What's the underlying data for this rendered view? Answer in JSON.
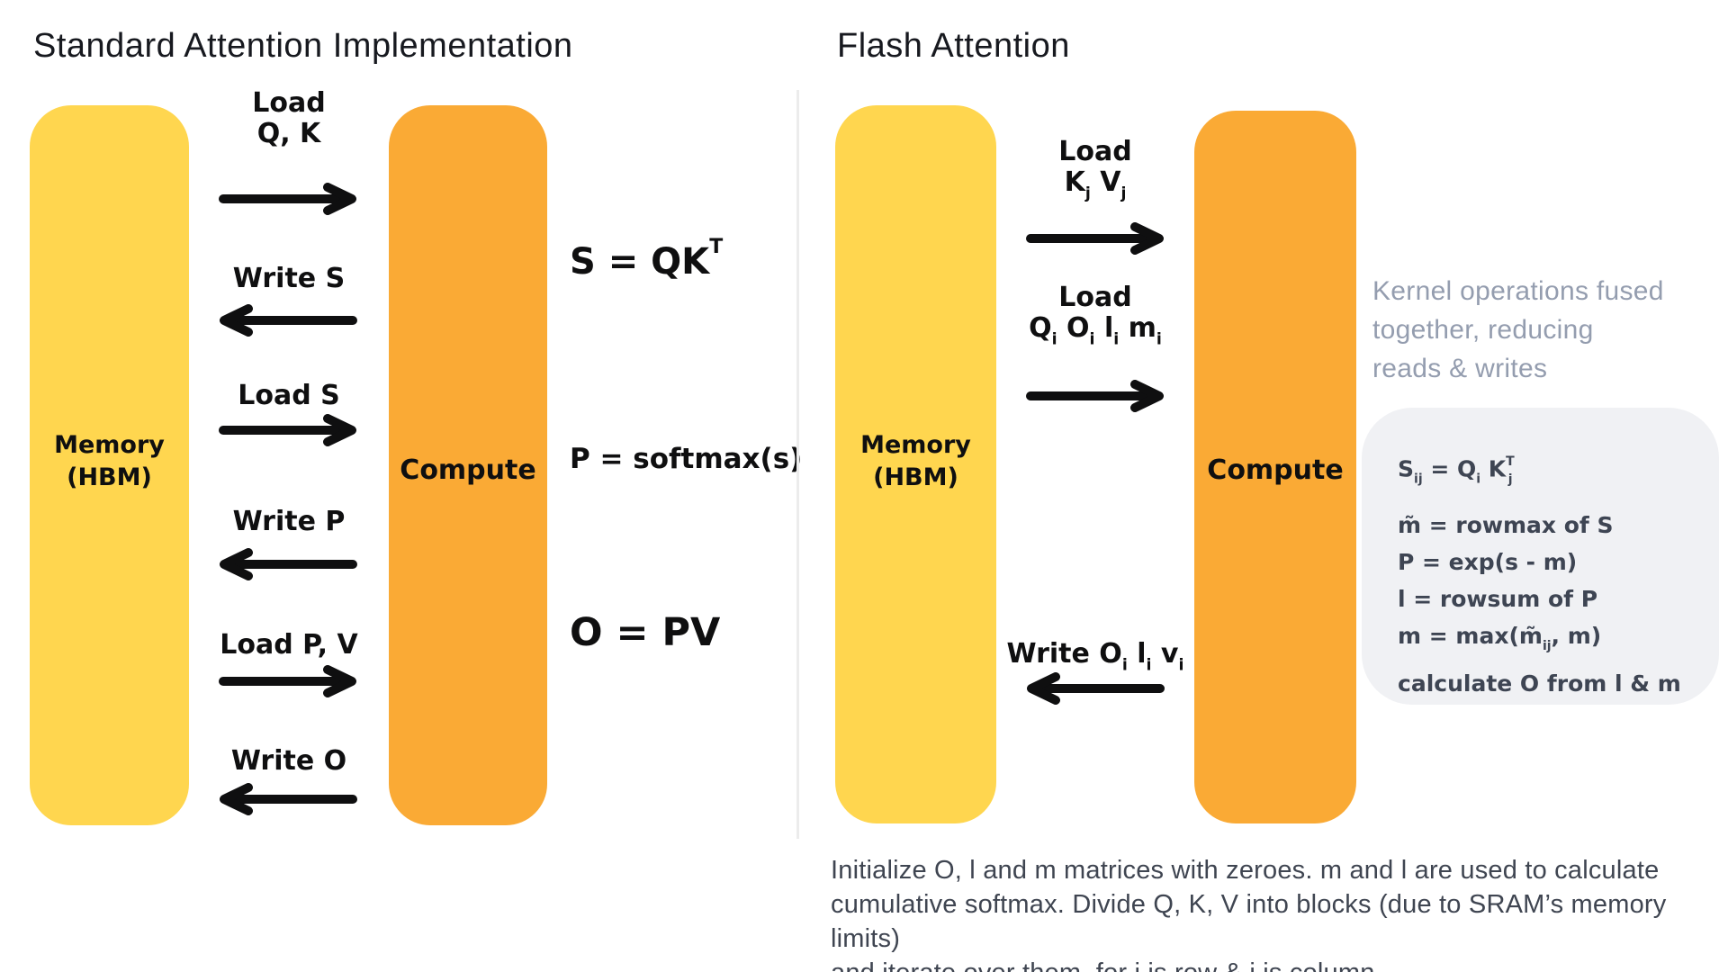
{
  "colors": {
    "yellow": "#FFD64F",
    "orange": "#FAAA35",
    "ink": "#0F0F10",
    "title": "#17191F",
    "note_gray": "#949DAF",
    "box_bg": "#F0F1F4",
    "box_text": "#3E4553",
    "paragraph": "#3F4551",
    "divider": "#ECECEC"
  },
  "left_panel": {
    "title": "Standard Attention Implementation",
    "memory_label_line1": "Memory",
    "memory_label_line2": "(HBM)",
    "compute_label": "Compute",
    "flows": [
      {
        "line1": "Load",
        "line2": "Q, K",
        "direction": "right"
      },
      {
        "line1": "Write S",
        "direction": "left"
      },
      {
        "line1": "Load S",
        "direction": "right"
      },
      {
        "line1": "Write P",
        "direction": "left"
      },
      {
        "line1": "Load P, V",
        "direction": "right"
      },
      {
        "line1": "Write O",
        "direction": "left"
      }
    ],
    "formulas": {
      "f1": [
        {
          "t": "S = QK"
        },
        {
          "t": "T",
          "p": "sup"
        }
      ],
      "f2": "P = softmax(s)",
      "f3": "O = PV"
    }
  },
  "right_panel": {
    "title": "Flash Attention",
    "memory_label_line1": "Memory",
    "memory_label_line2": "(HBM)",
    "compute_label": "Compute",
    "flows": [
      {
        "line1": "Load",
        "line2_rich": [
          {
            "t": "K"
          },
          {
            "t": "j",
            "p": "sub"
          },
          {
            "t": "  V"
          },
          {
            "t": "j",
            "p": "sub"
          }
        ],
        "direction": "right"
      },
      {
        "line1": "Load",
        "line2_rich": [
          {
            "t": "Q"
          },
          {
            "t": "i",
            "p": "sub"
          },
          {
            "t": " O"
          },
          {
            "t": "i",
            "p": "sub"
          },
          {
            "t": " l"
          },
          {
            "t": "i",
            "p": "sub"
          },
          {
            "t": " m"
          },
          {
            "t": "i",
            "p": "sub"
          }
        ],
        "direction": "right"
      },
      {
        "line1_rich": [
          {
            "t": "Write O"
          },
          {
            "t": "i",
            "p": "sub"
          },
          {
            "t": " l"
          },
          {
            "t": "i",
            "p": "sub"
          },
          {
            "t": " v"
          },
          {
            "t": "i",
            "p": "sub"
          }
        ],
        "direction": "left"
      }
    ],
    "note_lines": [
      "Kernel operations fused",
      "together, reducing",
      "reads & writes"
    ],
    "formula_box_lines": [
      [
        {
          "t": "S"
        },
        {
          "t": "ij",
          "p": "sub"
        },
        {
          "t": " = Q"
        },
        {
          "t": "i",
          "p": "sub"
        },
        {
          "t": " K"
        },
        {
          "t": "T",
          "p": "sup"
        },
        {
          "t": "j",
          "p": "sub tuck"
        }
      ],
      [
        {
          "t": "m̃ = rowmax of S"
        }
      ],
      [
        {
          "t": "P = exp(s - m)"
        }
      ],
      [
        {
          "t": "l = rowsum of P"
        }
      ],
      [
        {
          "t": "m = max(m̃"
        },
        {
          "t": "ij",
          "p": "sub"
        },
        {
          "t": ", m)"
        }
      ],
      [
        {
          "t": "calculate O from l & m"
        }
      ]
    ],
    "footnote_lines": [
      "Initialize O, l and m matrices with zeroes. m and l are used to calculate",
      "cumulative softmax. Divide Q, K, V into blocks (due to SRAM’s memory limits)",
      "and iterate over them, for i is row & j is column."
    ]
  }
}
